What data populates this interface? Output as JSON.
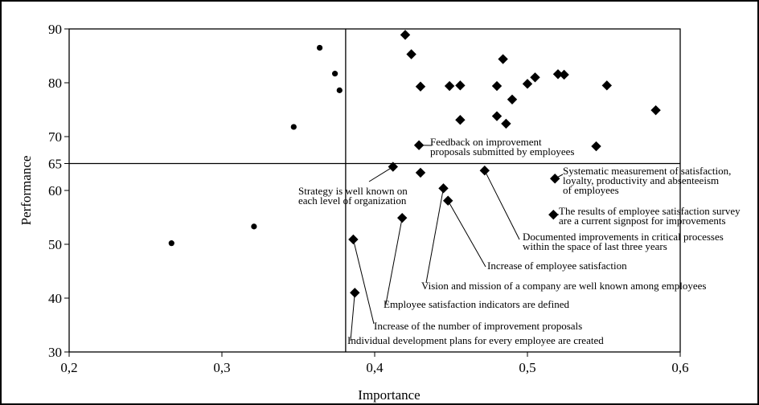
{
  "chart_data": {
    "type": "scatter",
    "title": "",
    "xlabel": "Importance",
    "ylabel": "Performance",
    "xlim": [
      0.2,
      0.6
    ],
    "ylim": [
      30,
      90
    ],
    "x_ticks": [
      0.2,
      0.3,
      0.4,
      0.5,
      0.6
    ],
    "x_tick_labels": [
      "0,2",
      "0,3",
      "0,4",
      "0,5",
      "0,6"
    ],
    "y_ticks": [
      30,
      40,
      50,
      60,
      65,
      70,
      80,
      90
    ],
    "y_tick_labels": [
      "30",
      "40",
      "50",
      "60",
      "65",
      "70",
      "80",
      "90"
    ],
    "reference_lines": {
      "x": 0.381,
      "y": 65
    },
    "grid": false,
    "legend": "none",
    "series": [
      {
        "marker": "circle",
        "points": [
          {
            "x": 0.267,
            "y": 50.2
          },
          {
            "x": 0.321,
            "y": 53.3
          },
          {
            "x": 0.347,
            "y": 71.8
          },
          {
            "x": 0.364,
            "y": 86.5
          },
          {
            "x": 0.374,
            "y": 81.7
          },
          {
            "x": 0.377,
            "y": 78.6
          }
        ]
      },
      {
        "marker": "diamond",
        "points": [
          {
            "x": 0.42,
            "y": 88.9
          },
          {
            "x": 0.424,
            "y": 85.3
          },
          {
            "x": 0.43,
            "y": 79.3
          },
          {
            "x": 0.449,
            "y": 79.4
          },
          {
            "x": 0.456,
            "y": 79.5
          },
          {
            "x": 0.456,
            "y": 73.1
          },
          {
            "x": 0.48,
            "y": 79.4
          },
          {
            "x": 0.48,
            "y": 73.8
          },
          {
            "x": 0.484,
            "y": 84.4
          },
          {
            "x": 0.486,
            "y": 72.4
          },
          {
            "x": 0.49,
            "y": 76.9
          },
          {
            "x": 0.5,
            "y": 79.8
          },
          {
            "x": 0.505,
            "y": 81.0
          },
          {
            "x": 0.52,
            "y": 81.6
          },
          {
            "x": 0.524,
            "y": 81.5
          },
          {
            "x": 0.552,
            "y": 79.5
          },
          {
            "x": 0.584,
            "y": 74.9
          },
          {
            "x": 0.545,
            "y": 68.2
          },
          {
            "x": 0.429,
            "y": 68.4
          },
          {
            "x": 0.43,
            "y": 63.3
          },
          {
            "x": 0.412,
            "y": 64.4
          },
          {
            "x": 0.472,
            "y": 63.7
          },
          {
            "x": 0.445,
            "y": 60.4
          },
          {
            "x": 0.448,
            "y": 58.1
          },
          {
            "x": 0.518,
            "y": 62.2
          },
          {
            "x": 0.517,
            "y": 55.5
          },
          {
            "x": 0.418,
            "y": 54.9
          },
          {
            "x": 0.386,
            "y": 50.9
          },
          {
            "x": 0.387,
            "y": 41.0
          }
        ]
      }
    ],
    "annotations": [
      {
        "lines": [
          "Feedback on improvement",
          "proposals submitted by employees"
        ],
        "point": {
          "x": 0.429,
          "y": 68.4
        }
      },
      {
        "lines": [
          "Strategy is well known on",
          "each level of organization"
        ],
        "point": {
          "x": 0.412,
          "y": 64.4
        }
      },
      {
        "lines": [
          "Systematic measurement of satisfaction,",
          "loyalty, productivity and absenteeism",
          "of employees"
        ],
        "point": {
          "x": 0.518,
          "y": 62.2
        }
      },
      {
        "lines": [
          "The results of employee satisfaction survey",
          "are a current signpost for improvements"
        ],
        "point": {
          "x": 0.517,
          "y": 55.5
        }
      },
      {
        "lines": [
          "Documented improvements in critical processes",
          "within the space of last three years"
        ],
        "point": {
          "x": 0.472,
          "y": 63.7
        }
      },
      {
        "lines": [
          "Increase of employee satisfaction"
        ],
        "point": {
          "x": 0.448,
          "y": 58.1
        }
      },
      {
        "lines": [
          "Vision and mission of a company are well known among employees"
        ],
        "point": {
          "x": 0.445,
          "y": 60.4
        }
      },
      {
        "lines": [
          "Employee satisfaction indicators are defined"
        ],
        "point": {
          "x": 0.418,
          "y": 54.9
        }
      },
      {
        "lines": [
          "Increase of the number of improvement proposals"
        ],
        "point": {
          "x": 0.386,
          "y": 50.9
        }
      },
      {
        "lines": [
          "Individual development plans for every employee are created"
        ],
        "point": {
          "x": 0.387,
          "y": 41.0
        }
      }
    ]
  }
}
